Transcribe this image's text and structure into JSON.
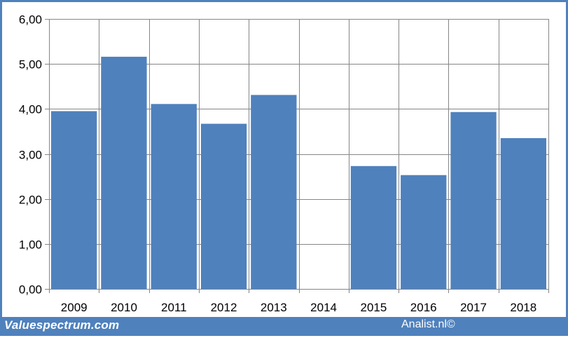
{
  "chart_data": {
    "type": "bar",
    "title": "",
    "xlabel": "",
    "ylabel": "",
    "categories": [
      "2009",
      "2010",
      "2011",
      "2012",
      "2013",
      "2014",
      "2015",
      "2016",
      "2017",
      "2018"
    ],
    "values": [
      3.95,
      5.16,
      4.11,
      3.67,
      4.31,
      0,
      2.73,
      2.53,
      3.93,
      3.35
    ],
    "ylim": [
      0,
      6
    ],
    "yticks": [
      "0,00",
      "1,00",
      "2,00",
      "3,00",
      "4,00",
      "5,00",
      "6,00"
    ],
    "grid": true,
    "bar_color": "#4f81bd",
    "grid_color": "#868686"
  },
  "footer": {
    "left_text": "Valuespectrum.com",
    "right_text": "Analist.nl©",
    "background": "#4f81bd"
  }
}
